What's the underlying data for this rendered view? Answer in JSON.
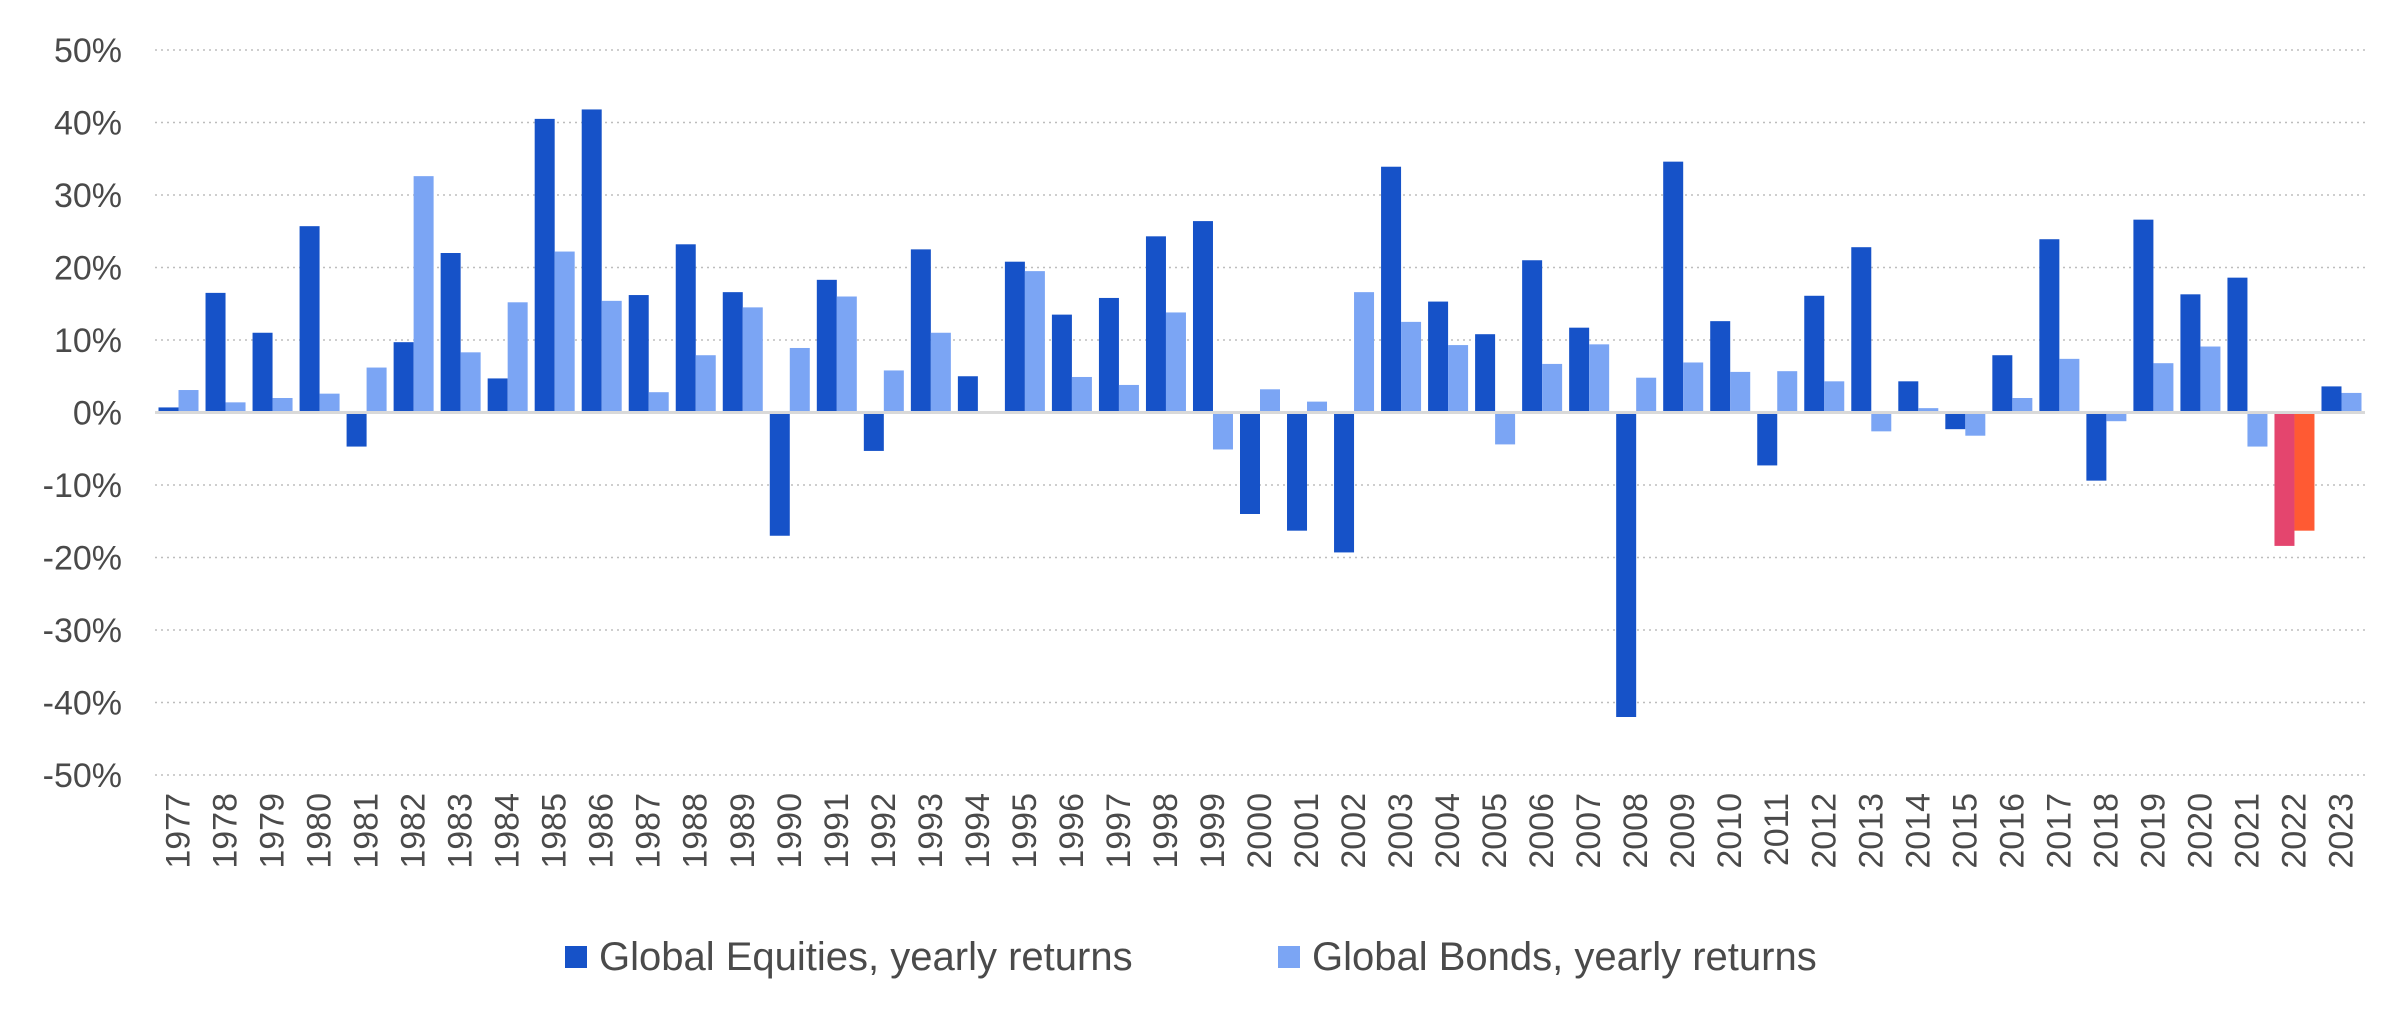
{
  "chart_data": {
    "type": "bar",
    "categories": [
      "1977",
      "1978",
      "1979",
      "1980",
      "1981",
      "1982",
      "1983",
      "1984",
      "1985",
      "1986",
      "1987",
      "1988",
      "1989",
      "1990",
      "1991",
      "1992",
      "1993",
      "1994",
      "1995",
      "1996",
      "1997",
      "1998",
      "1999",
      "2000",
      "2001",
      "2002",
      "2003",
      "2004",
      "2005",
      "2006",
      "2007",
      "2008",
      "2009",
      "2010",
      "2011",
      "2012",
      "2013",
      "2014",
      "2015",
      "2016",
      "2017",
      "2018",
      "2019",
      "2020",
      "2021",
      "2022",
      "2023"
    ],
    "series": [
      {
        "name": "Global Equities, yearly returns",
        "color": "#1652C8",
        "values": [
          0.7,
          16.5,
          11.0,
          25.7,
          -4.7,
          9.7,
          22.0,
          4.7,
          40.5,
          41.8,
          16.2,
          23.2,
          16.6,
          -17.0,
          18.3,
          -5.3,
          22.5,
          5.0,
          20.8,
          13.5,
          15.8,
          24.3,
          26.4,
          -14.0,
          -16.3,
          -19.3,
          33.9,
          15.3,
          10.8,
          21.0,
          11.7,
          -42.0,
          34.6,
          12.6,
          -7.3,
          16.1,
          22.8,
          4.3,
          -2.3,
          7.9,
          23.9,
          -9.4,
          26.6,
          16.3,
          18.6,
          -18.4,
          3.6
        ]
      },
      {
        "name": "Global Bonds, yearly returns",
        "color": "#7BA5F4",
        "values": [
          3.1,
          1.4,
          2.0,
          2.6,
          6.2,
          32.6,
          8.3,
          15.2,
          22.2,
          15.4,
          2.8,
          7.9,
          14.5,
          8.9,
          16.0,
          5.8,
          11.0,
          0.0,
          19.5,
          4.9,
          3.8,
          13.8,
          -5.1,
          3.2,
          1.5,
          16.6,
          12.5,
          9.3,
          -4.4,
          6.7,
          9.4,
          4.8,
          6.9,
          5.6,
          5.7,
          4.3,
          -2.6,
          0.6,
          -3.2,
          2.0,
          7.4,
          -1.2,
          6.8,
          9.1,
          -4.7,
          -16.3,
          2.7
        ]
      }
    ],
    "highlight": {
      "category": "2022",
      "colors": [
        "#E4456E",
        "#FF5A33"
      ]
    },
    "ylim": [
      -50,
      50
    ],
    "yticks": [
      50,
      40,
      30,
      20,
      10,
      0,
      -10,
      -20,
      -30,
      -40,
      -50
    ],
    "ytick_labels": [
      "50%",
      "40%",
      "30%",
      "20%",
      "10%",
      "0%",
      "-10%",
      "-20%",
      "-30%",
      "-40%",
      "-50%"
    ],
    "grid": "horizontal dotted",
    "legend_position": "bottom-center",
    "title": "",
    "xlabel": "",
    "ylabel": ""
  }
}
